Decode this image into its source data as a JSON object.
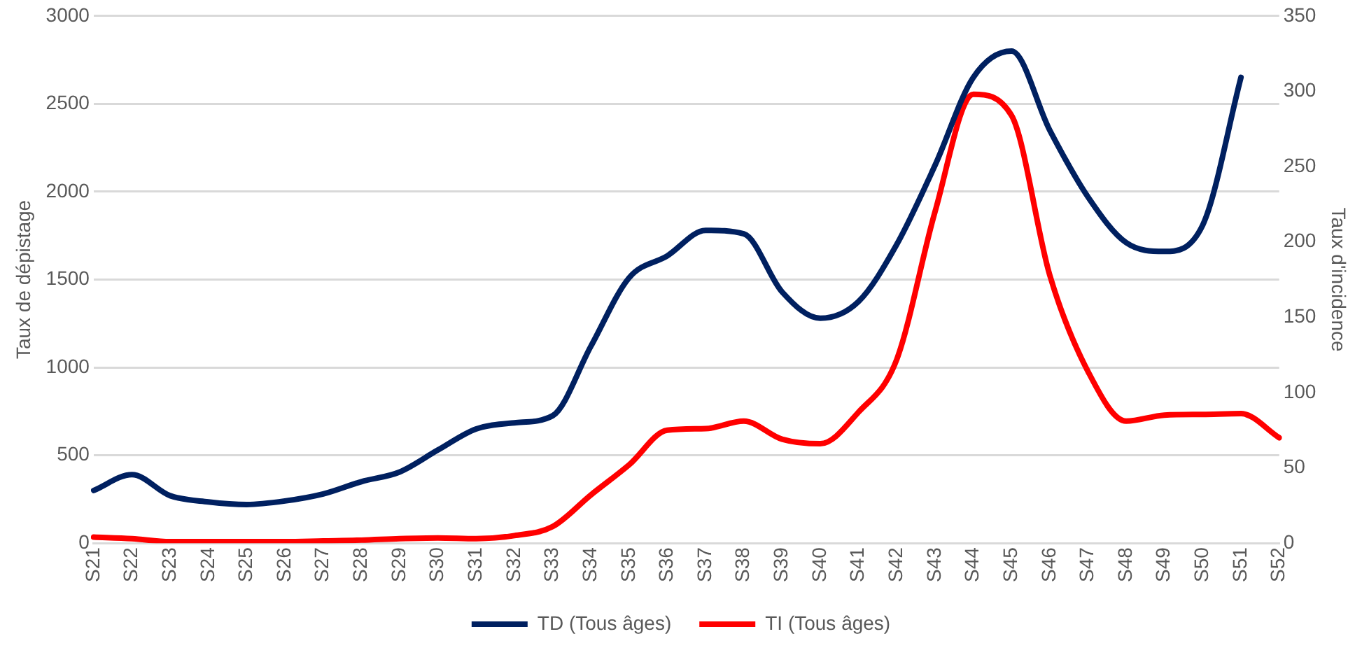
{
  "chart_data": {
    "type": "line",
    "ylabel": "Taux de dépistage",
    "y2label": "Taux d'incidence",
    "categories": [
      "S21",
      "S22",
      "S23",
      "S24",
      "S25",
      "S26",
      "S27",
      "S28",
      "S29",
      "S30",
      "S31",
      "S32",
      "S33",
      "S34",
      "S35",
      "S36",
      "S37",
      "S38",
      "S39",
      "S40",
      "S41",
      "S42",
      "S43",
      "S44",
      "S45",
      "S46",
      "S47",
      "S48",
      "S49",
      "S50",
      "S51",
      "S52"
    ],
    "series": [
      {
        "name": "TD (Tous âges)",
        "color": "#002060",
        "values": [
          300,
          390,
          270,
          235,
          220,
          240,
          280,
          350,
          405,
          530,
          650,
          685,
          725,
          1120,
          1510,
          1635,
          1780,
          1760,
          1430,
          1280,
          1375,
          1700,
          2150,
          2650,
          2800,
          2350,
          1970,
          1710,
          1660,
          1810,
          2650,
          null
        ]
      },
      {
        "name": "TI (Tous âges)",
        "color": "#ff0000",
        "axis": "y2",
        "values": [
          4,
          3,
          1,
          1,
          1,
          1,
          1.5,
          2,
          3,
          3.5,
          3,
          5,
          11,
          32,
          52,
          75,
          76,
          81,
          69,
          66,
          87,
          122,
          220,
          298,
          284,
          178,
          114,
          81,
          85,
          85.5,
          86,
          70
        ]
      }
    ],
    "ylim": [
      0,
      3000
    ],
    "yticks": [
      0,
      500,
      1000,
      1500,
      2000,
      2500,
      3000
    ],
    "y2lim": [
      0,
      350
    ],
    "y2ticks": [
      0,
      50,
      100,
      150,
      200,
      250,
      300,
      350
    ],
    "grid": "y",
    "legend": "bottom",
    "marker": "none",
    "line_style": "solid"
  }
}
